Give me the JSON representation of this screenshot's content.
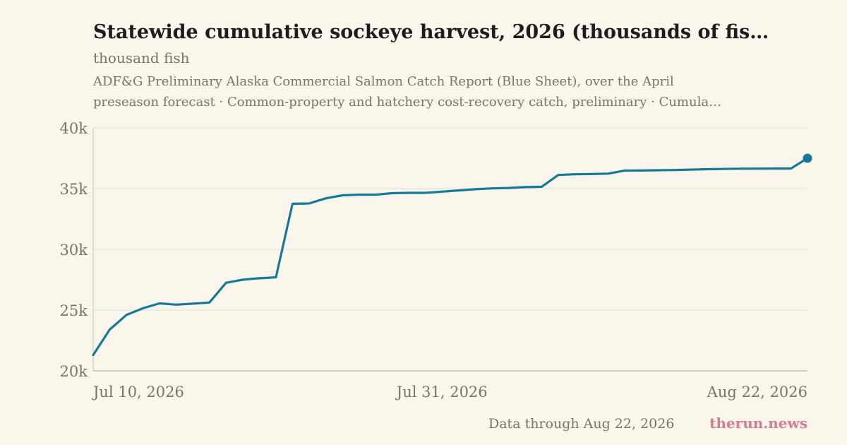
{
  "header": {
    "title": "Statewide cumulative sockeye harvest, 2026 (thousands of fis…",
    "subtitle": "thousand fish",
    "source_line1": "ADF&G Preliminary Alaska Commercial Salmon Catch Report (Blue Sheet), over the April",
    "source_line2": "preseason forecast · Common-property and hatchery cost-recovery catch, preliminary · Cumula…"
  },
  "footer": {
    "note": "Data through Aug 22, 2026",
    "brand": "therun.news"
  },
  "colors": {
    "background": "#faf6ec",
    "line": "#17799a",
    "grid": "#e6e0d0",
    "axis": "#c9bfa8",
    "muted_text": "#7a7468",
    "brand": "#d97a8e"
  },
  "chart_data": {
    "type": "line",
    "title": "Statewide cumulative sockeye harvest, 2026 (thousands of fis…",
    "ylabel": "thousand fish",
    "xlabel": "",
    "ylim": [
      20000,
      40000
    ],
    "xlim": [
      "2026-07-10",
      "2026-08-22"
    ],
    "y_ticks": [
      {
        "value": 20000,
        "label": "20k"
      },
      {
        "value": 25000,
        "label": "25k"
      },
      {
        "value": 30000,
        "label": "30k"
      },
      {
        "value": 35000,
        "label": "35k"
      },
      {
        "value": 40000,
        "label": "40k"
      }
    ],
    "x_ticks": [
      {
        "value": "2026-07-10",
        "label": "Jul 10, 2026"
      },
      {
        "value": "2026-07-31",
        "label": "Jul 31, 2026"
      },
      {
        "value": "2026-08-22",
        "label": "Aug 22, 2026"
      }
    ],
    "grid": true,
    "legend": "none",
    "end_marker": true,
    "series": [
      {
        "x": [
          "2026-07-10",
          "2026-07-11",
          "2026-07-12",
          "2026-07-13",
          "2026-07-14",
          "2026-07-15",
          "2026-07-16",
          "2026-07-17",
          "2026-07-18",
          "2026-07-19",
          "2026-07-20",
          "2026-07-21",
          "2026-07-22",
          "2026-07-23",
          "2026-07-24",
          "2026-07-25",
          "2026-07-26",
          "2026-07-27",
          "2026-07-28",
          "2026-07-29",
          "2026-07-30",
          "2026-07-31",
          "2026-08-01",
          "2026-08-02",
          "2026-08-03",
          "2026-08-04",
          "2026-08-05",
          "2026-08-06",
          "2026-08-07",
          "2026-08-08",
          "2026-08-09",
          "2026-08-10",
          "2026-08-11",
          "2026-08-12",
          "2026-08-13",
          "2026-08-14",
          "2026-08-16",
          "2026-08-18",
          "2026-08-20",
          "2026-08-21",
          "2026-08-22"
        ],
        "values": [
          21300,
          23400,
          24600,
          25150,
          25550,
          25450,
          25530,
          25620,
          27250,
          27500,
          27620,
          27700,
          33750,
          33780,
          34200,
          34450,
          34500,
          34500,
          34620,
          34650,
          34650,
          34750,
          34850,
          34950,
          35020,
          35050,
          35120,
          35150,
          36120,
          36180,
          36200,
          36230,
          36480,
          36490,
          36510,
          36530,
          36600,
          36640,
          36650,
          36650,
          37500
        ]
      }
    ]
  }
}
